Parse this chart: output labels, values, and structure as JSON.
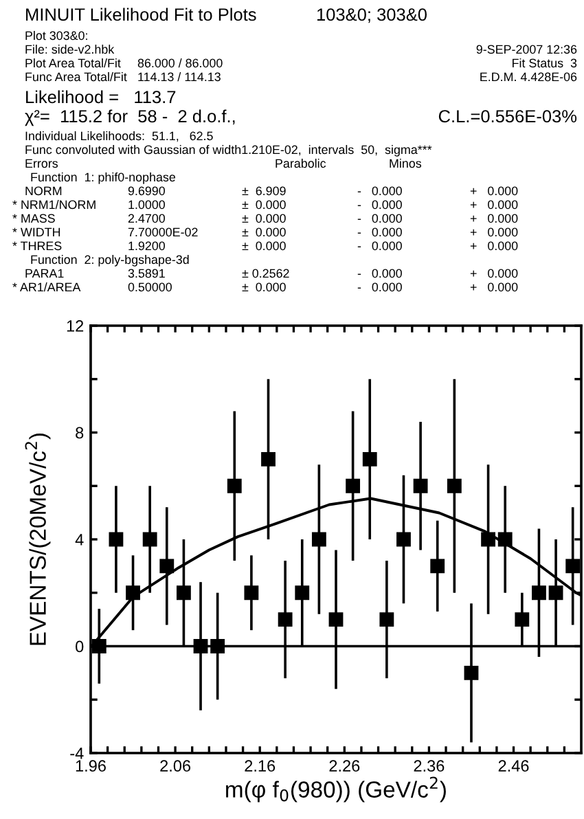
{
  "chart_data": {
    "type": "scatter",
    "title": "MINUIT Likelihood Fit to Plots",
    "subtitle": "103&0; 303&0",
    "xlabel": "m(φ f$_{0}$(980)) (GeV/c$^{2}$)",
    "ylabel": "EVENTS/(20MeV/c$^{2}$)",
    "annotations": [
      "Plot 303&0:",
      "File: side-v2.hbk",
      "Plot Area Total/Fit",
      "86.000 / 86.000",
      "Func Area Total/Fit",
      "114.13 / 114.13",
      "9-SEP-2007 12:36",
      "Fit Status  3",
      "E.D.M. 4.428E-06",
      "Likelihood =   113.7",
      "χ²=  115.2 for  58 -  2 d.o.f.,",
      "C.L.=0.556E-03%",
      "Individual Likelihoods:  51.1,   62.5",
      "Func convoluted with Gaussian of width1.210E-02,  intervals  50,  sigma***",
      "Errors",
      "Parabolic",
      "Minos",
      "Function  1: phif0-nophase",
      "NORM",
      "9.6990",
      "±  6.909",
      "-   0.000",
      "+   0.000",
      "* NRM1/NORM",
      "1.0000",
      "±  0.000",
      "-   0.000",
      "+   0.000",
      "* MASS",
      "2.4700",
      "±  0.000",
      "-   0.000",
      "+   0.000",
      "* WIDTH",
      "7.70000E-02",
      "±  0.000",
      "-   0.000",
      "+   0.000",
      "* THRES",
      "1.9200",
      "±  0.000",
      "-   0.000",
      "+   0.000",
      "Function  2: poly-bgshape-3d",
      "PARA1",
      "3.5891",
      "± 0.2562",
      "-   0.000",
      "+   0.000",
      "* AR1/AREA",
      "0.50000",
      "±  0.000",
      "-   0.000",
      "+   0.000"
    ],
    "xlim": [
      1.96,
      2.54
    ],
    "xticks": [
      1.96,
      {
        "value": 1.98,
        "label": null
      },
      {
        "value": 2.0,
        "label": null
      },
      {
        "value": 2.02,
        "label": null
      },
      {
        "value": 2.04,
        "label": null
      },
      2.06,
      {
        "value": 2.08,
        "label": null
      },
      {
        "value": 2.1,
        "label": null
      },
      {
        "value": 2.12,
        "label": null
      },
      {
        "value": 2.14,
        "label": null
      },
      2.16,
      {
        "value": 2.18,
        "label": null
      },
      {
        "value": 2.2,
        "label": null
      },
      {
        "value": 2.22,
        "label": null
      },
      {
        "value": 2.24,
        "label": null
      },
      2.26,
      {
        "value": 2.28,
        "label": null
      },
      {
        "value": 2.3,
        "label": null
      },
      {
        "value": 2.32,
        "label": null
      },
      {
        "value": 2.34,
        "label": null
      },
      2.36,
      {
        "value": 2.38,
        "label": null
      },
      {
        "value": 2.4,
        "label": null
      },
      {
        "value": 2.42,
        "label": null
      },
      {
        "value": 2.44,
        "label": null
      },
      2.46,
      {
        "value": 2.48,
        "label": null
      },
      {
        "value": 2.5,
        "label": null
      },
      {
        "value": 2.52,
        "label": null
      }
    ],
    "ylim": [
      -4,
      12
    ],
    "yticks": [
      -4,
      {
        "value": -2,
        "label": null
      },
      0,
      {
        "value": 2,
        "label": null
      },
      4,
      {
        "value": 6,
        "label": null
      },
      8,
      {
        "value": 10,
        "label": null
      },
      12
    ],
    "ref_lines": [
      {
        "axis": "y",
        "value": 0,
        "color": "#000000"
      }
    ],
    "marker": "square",
    "legend": false,
    "series": [
      {
        "color": "#000000",
        "x": [
          1.97,
          1.99,
          2.01,
          2.03,
          2.05,
          2.07,
          2.09,
          2.11,
          2.13,
          2.15,
          2.17,
          2.19,
          2.21,
          2.23,
          2.25,
          2.27,
          2.29,
          2.31,
          2.33,
          2.35,
          2.37,
          2.39,
          2.41,
          2.43,
          2.45,
          2.47,
          2.49,
          2.51,
          2.53
        ],
        "values": [
          0,
          4,
          2,
          4,
          3,
          2,
          0,
          0,
          6,
          2,
          7,
          1,
          2,
          4,
          1,
          6,
          7,
          1,
          4,
          6,
          3,
          6,
          -1,
          4,
          4,
          1,
          2,
          2,
          3
        ],
        "errors": [
          1.4,
          2,
          1.4,
          2,
          2.2,
          2,
          2.4,
          2,
          2.8,
          1.4,
          3,
          2.2,
          2,
          2.8,
          2.6,
          2.8,
          3,
          2.2,
          2.4,
          2.4,
          1.7,
          4,
          2.6,
          2.8,
          2,
          1,
          2.4,
          2,
          2.2
        ]
      },
      {
        "type": "line",
        "color": "#000000",
        "marker": "none",
        "x": [
          1.961,
          2.01,
          2.064,
          2.1,
          2.134,
          2.18,
          2.242,
          2.291,
          2.372,
          2.426,
          2.48,
          2.534,
          2.54
        ],
        "values": [
          0,
          1.84,
          2.94,
          3.6,
          4.1,
          4.6,
          5.3,
          5.53,
          4.99,
          4.3,
          3.28,
          2.0,
          1.9
        ]
      }
    ]
  }
}
